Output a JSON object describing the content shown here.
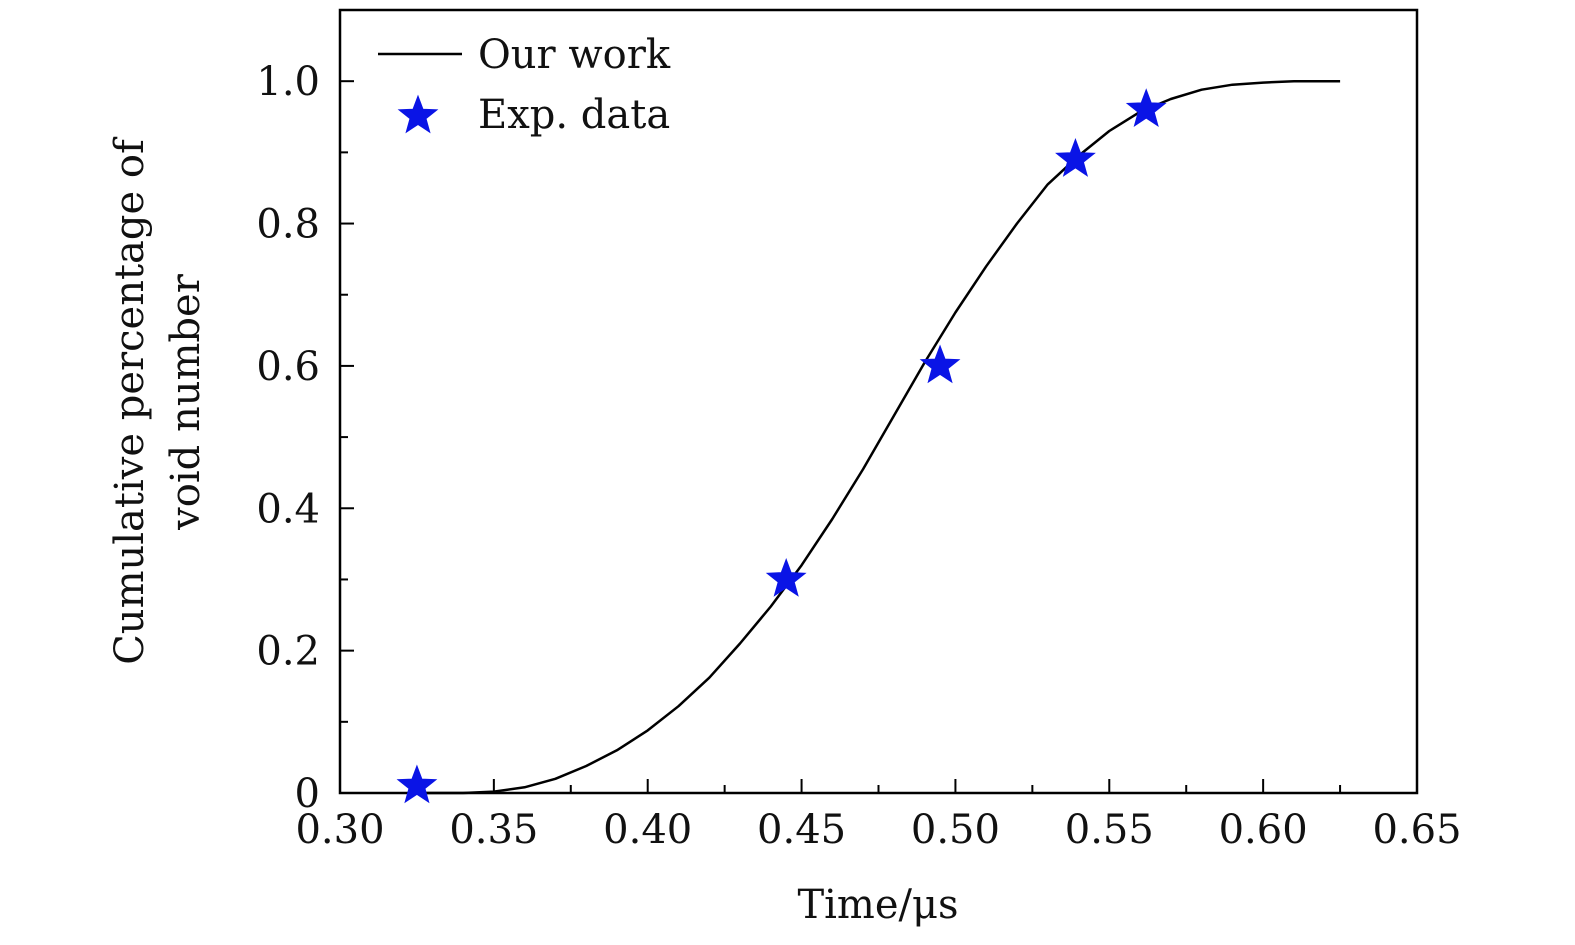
{
  "chart_data": {
    "type": "line",
    "xlabel": "Time/μs",
    "ylabel_lines": [
      "Cumulative percentage of",
      "void number"
    ],
    "xlim": [
      0.3,
      0.65
    ],
    "ylim": [
      0,
      1.1
    ],
    "x_ticks": [
      0.3,
      0.35,
      0.4,
      0.45,
      0.5,
      0.55,
      0.6,
      0.65
    ],
    "x_tick_labels": [
      "0.30",
      "0.35",
      "0.40",
      "0.45",
      "0.50",
      "0.55",
      "0.60",
      "0.65"
    ],
    "y_ticks": [
      0,
      0.2,
      0.4,
      0.6,
      0.8,
      1.0
    ],
    "y_tick_labels": [
      "0",
      "0.2",
      "0.4",
      "0.6",
      "0.8",
      "1.0"
    ],
    "grid": false,
    "legend_position": "top-left",
    "series": [
      {
        "name": "Our work",
        "kind": "line",
        "color": "#000000",
        "x": [
          0.325,
          0.34,
          0.35,
          0.36,
          0.37,
          0.38,
          0.39,
          0.4,
          0.41,
          0.42,
          0.43,
          0.44,
          0.45,
          0.46,
          0.47,
          0.48,
          0.49,
          0.5,
          0.51,
          0.52,
          0.53,
          0.54,
          0.55,
          0.56,
          0.57,
          0.58,
          0.59,
          0.6,
          0.61,
          0.625
        ],
        "y": [
          0.0,
          0.0,
          0.002,
          0.008,
          0.02,
          0.038,
          0.06,
          0.088,
          0.122,
          0.162,
          0.21,
          0.262,
          0.32,
          0.385,
          0.455,
          0.53,
          0.605,
          0.675,
          0.74,
          0.8,
          0.855,
          0.895,
          0.93,
          0.957,
          0.975,
          0.988,
          0.995,
          0.998,
          1.0,
          1.0
        ]
      },
      {
        "name": "Exp. data",
        "kind": "scatter",
        "marker": "star",
        "color": "#0a14e6",
        "x": [
          0.325,
          0.445,
          0.495,
          0.539,
          0.562
        ],
        "y": [
          0.01,
          0.3,
          0.6,
          0.89,
          0.96
        ]
      }
    ]
  }
}
